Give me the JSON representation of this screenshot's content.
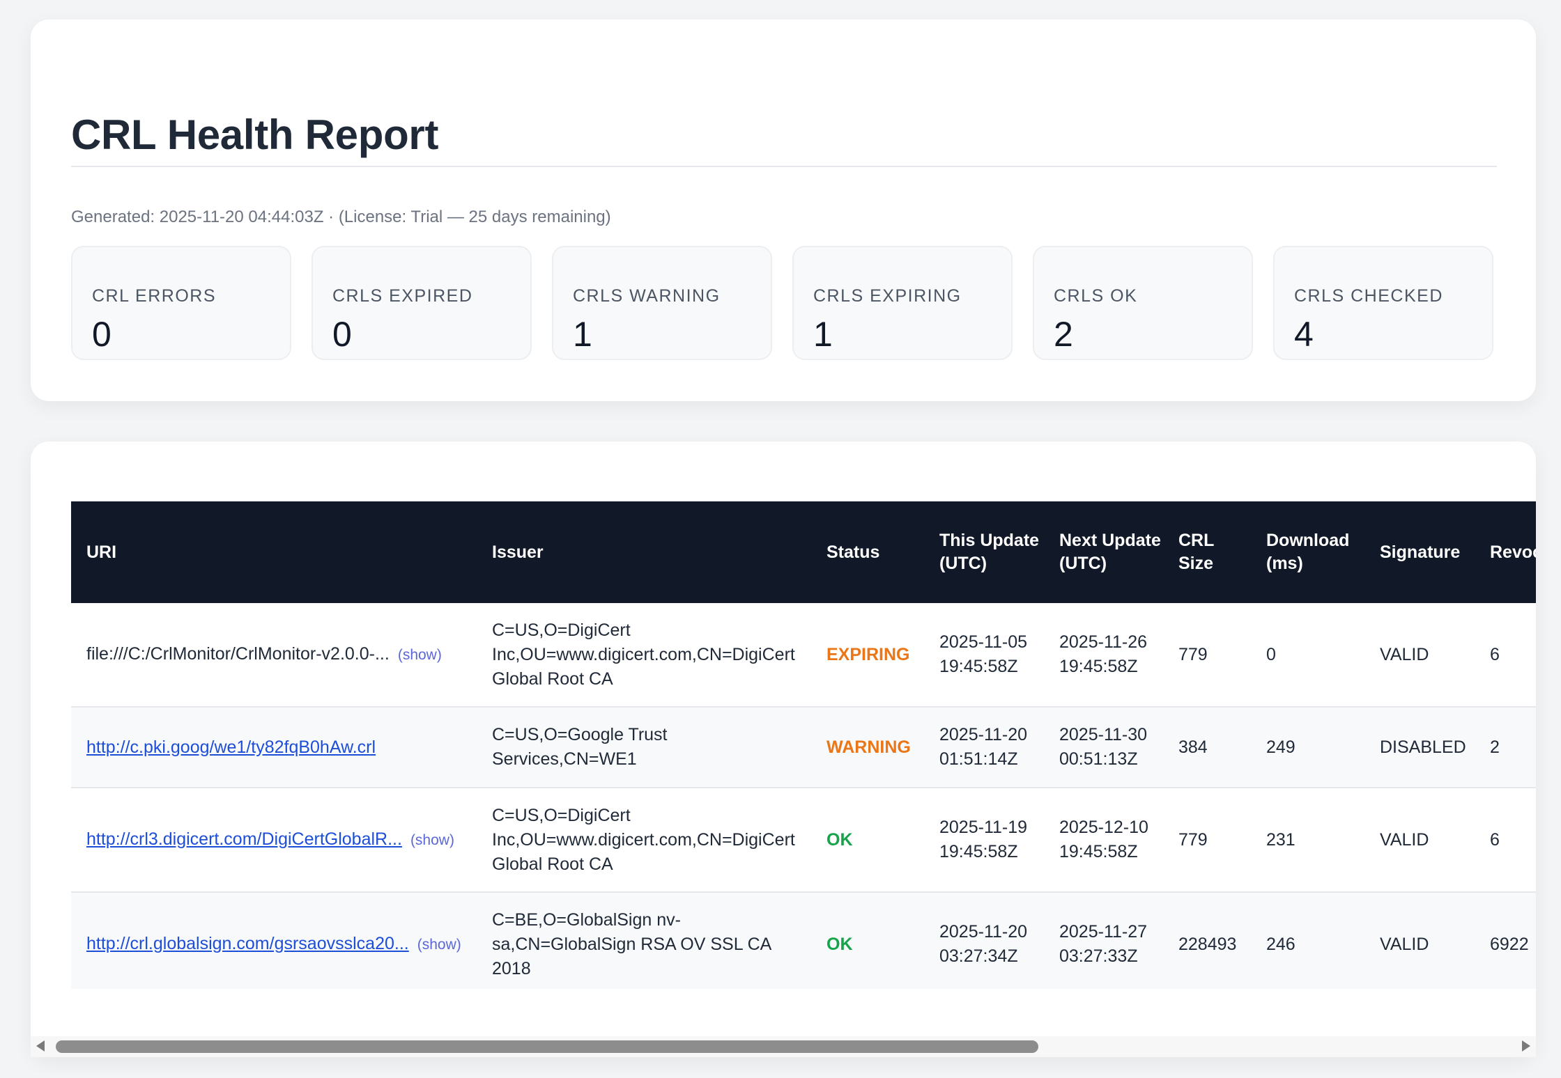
{
  "report": {
    "title": "CRL Health Report",
    "generated": "Generated: 2025-11-20 04:44:03Z · (License: Trial — 25 days remaining)"
  },
  "stats": [
    {
      "label": "CRL ERRORS",
      "value": "0"
    },
    {
      "label": "CRLS EXPIRED",
      "value": "0"
    },
    {
      "label": "CRLS WARNING",
      "value": "1"
    },
    {
      "label": "CRLS EXPIRING",
      "value": "1"
    },
    {
      "label": "CRLS OK",
      "value": "2"
    },
    {
      "label": "CRLS CHECKED",
      "value": "4"
    }
  ],
  "table": {
    "headers": [
      "URI",
      "Issuer",
      "Status",
      "This Update (UTC)",
      "Next Update (UTC)",
      "CRL Size",
      "Download (ms)",
      "Signature",
      "Revoc"
    ],
    "show_label": "(show)",
    "rows": [
      {
        "uri": "file:///C:/CrlMonitor/CrlMonitor-v2.0.0-...",
        "issuer": "C=US,O=DigiCert Inc,OU=www.digicert.com,CN=DigiCert Global Root CA",
        "status": "EXPIRING",
        "this_update": "2025-11-05 19:45:58Z",
        "next_update": "2025-11-26 19:45:58Z",
        "size": "779",
        "download": "0",
        "signature": "VALID",
        "revoked": "6"
      },
      {
        "uri": "http://c.pki.goog/we1/ty82fqB0hAw.crl",
        "issuer": "C=US,O=Google Trust Services,CN=WE1",
        "status": "WARNING",
        "this_update": "2025-11-20 01:51:14Z",
        "next_update": "2025-11-30 00:51:13Z",
        "size": "384",
        "download": "249",
        "signature": "DISABLED",
        "revoked": "2"
      },
      {
        "uri": "http://crl3.digicert.com/DigiCertGlobalR...",
        "issuer": "C=US,O=DigiCert Inc,OU=www.digicert.com,CN=DigiCert Global Root CA",
        "status": "OK",
        "this_update": "2025-11-19 19:45:58Z",
        "next_update": "2025-12-10 19:45:58Z",
        "size": "779",
        "download": "231",
        "signature": "VALID",
        "revoked": "6"
      },
      {
        "uri": "http://crl.globalsign.com/gsrsaovsslca20...",
        "issuer": "C=BE,O=GlobalSign nv-sa,CN=GlobalSign RSA OV SSL CA 2018",
        "status": "OK",
        "this_update": "2025-11-20 03:27:34Z",
        "next_update": "2025-11-27 03:27:33Z",
        "size": "228493",
        "download": "246",
        "signature": "VALID",
        "revoked": "6922"
      }
    ]
  },
  "colors": {
    "header_bg": "#111827",
    "expiring": "#ea7617",
    "warning": "#ea7617",
    "ok": "#16a34a",
    "link": "#1d4ed8"
  }
}
